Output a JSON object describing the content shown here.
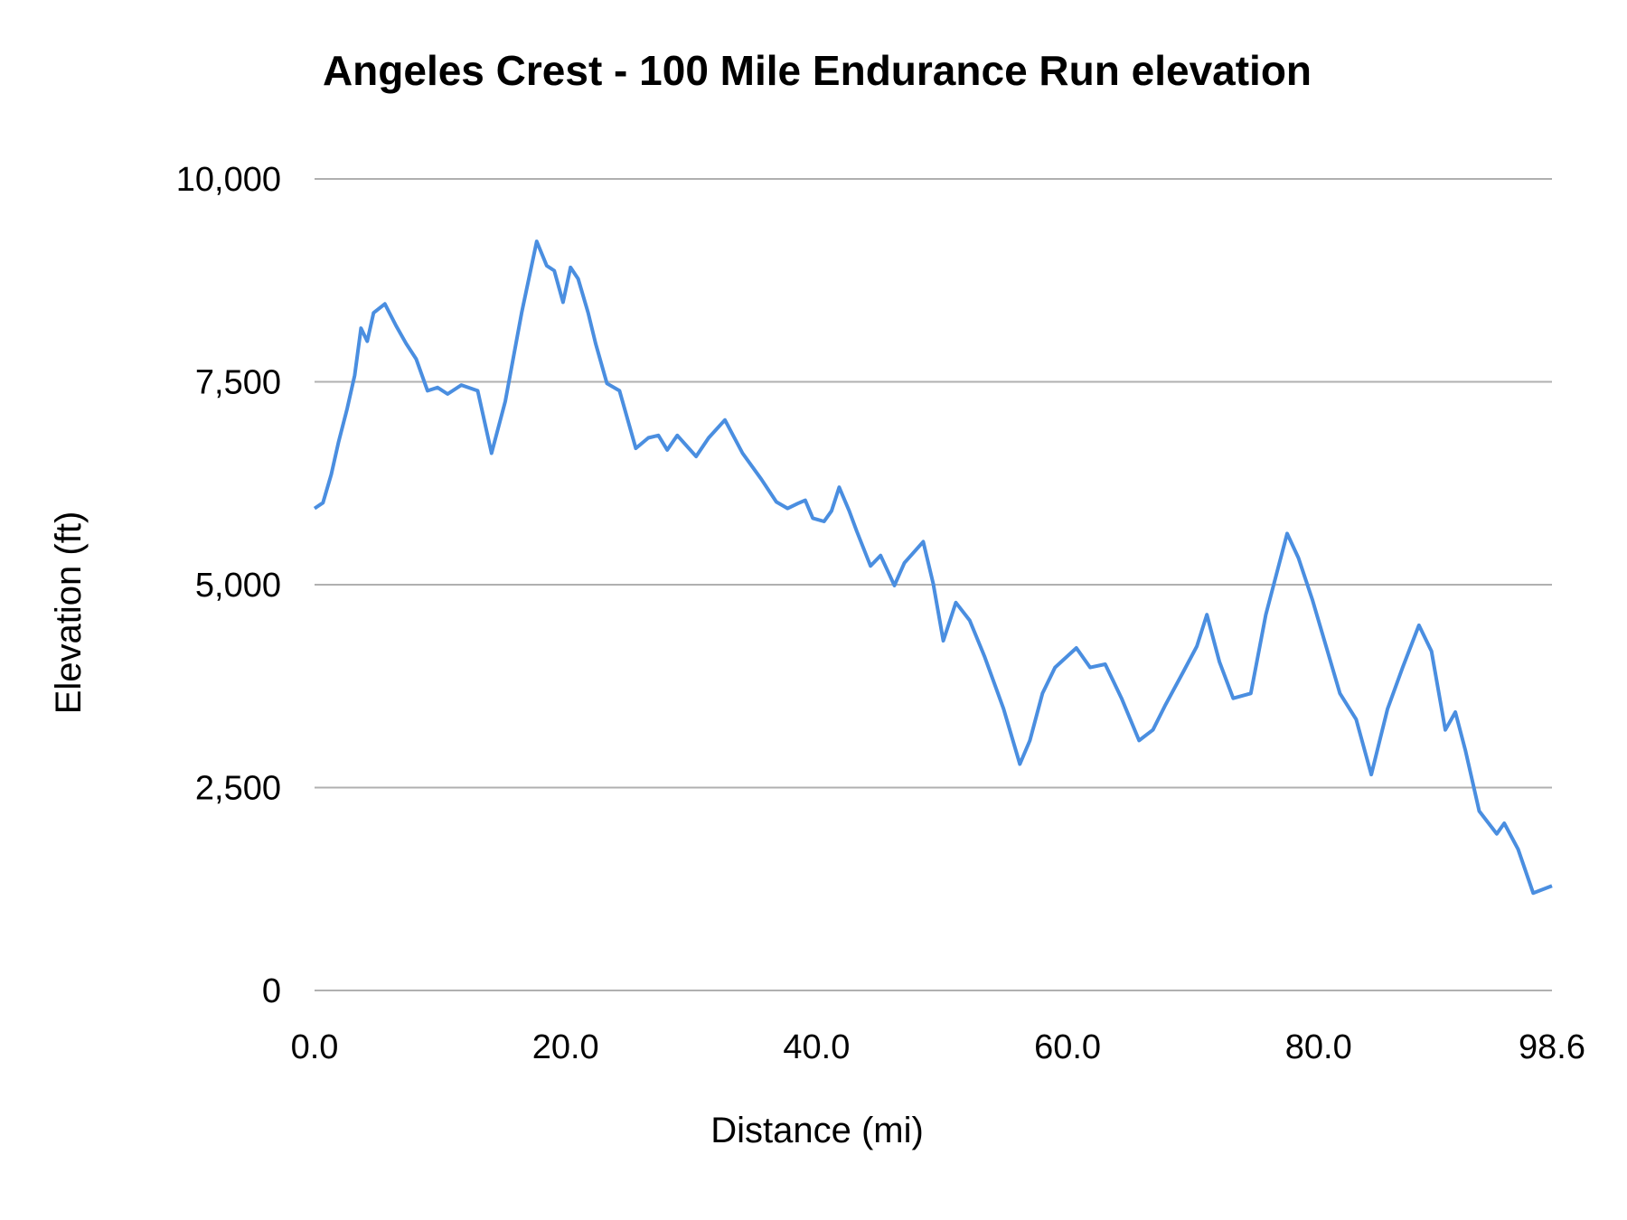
{
  "chart_data": {
    "type": "line",
    "title": "Angeles Crest - 100 Mile Endurance Run elevation",
    "xlabel": "Distance (mi)",
    "ylabel": "Elevation (ft)",
    "xlim": [
      0,
      98.6
    ],
    "ylim": [
      0,
      10000
    ],
    "x_ticks": [
      "0.0",
      "20.0",
      "40.0",
      "60.0",
      "80.0",
      "98.6"
    ],
    "x_tick_values": [
      0,
      20,
      40,
      60,
      80,
      98.6
    ],
    "y_ticks": [
      "0",
      "2,500",
      "5,000",
      "7,500",
      "10,000"
    ],
    "y_tick_values": [
      0,
      2500,
      5000,
      7500,
      10000
    ],
    "grid": "horizontal",
    "legend": "none",
    "line_color": "#4a8ee0",
    "grid_color": "#b0b0b0",
    "series": [
      {
        "x": [
          0,
          0.67,
          1.33,
          1.9,
          2.6,
          3.2,
          3.7,
          4.2,
          4.7,
          5.6,
          6.5,
          7.3,
          8.1,
          9.0,
          9.8,
          10.6,
          11.7,
          13.0,
          14.1,
          15.2,
          16.5,
          17.7,
          18.5,
          19.1,
          19.8,
          20.4,
          21.0,
          21.8,
          22.4,
          23.3,
          24.3,
          25.6,
          26.6,
          27.4,
          28.1,
          28.9,
          30.4,
          31.4,
          32.7,
          34.1,
          35.6,
          36.8,
          37.7,
          38.5,
          39.1,
          39.7,
          40.6,
          41.2,
          41.8,
          42.6,
          43.2,
          44.3,
          45.1,
          46.2,
          47.0,
          48.5,
          49.3,
          50.1,
          51.1,
          52.2,
          53.4,
          54.9,
          56.2,
          57.0,
          58.0,
          59.0,
          60.7,
          61.8,
          63.0,
          64.3,
          65.7,
          66.8,
          67.8,
          69.2,
          70.3,
          71.1,
          72.1,
          73.2,
          74.6,
          75.8,
          77.5,
          78.4,
          79.5,
          80.6,
          81.7,
          83.0,
          84.2,
          85.5,
          86.7,
          88.0,
          89.0,
          90.1,
          90.9,
          91.7,
          92.8,
          94.2,
          94.8,
          95.9,
          97.1,
          98.6
        ],
        "y": [
          5940,
          6010,
          6360,
          6750,
          7170,
          7580,
          8160,
          8000,
          8350,
          8460,
          8190,
          7970,
          7780,
          7390,
          7430,
          7350,
          7460,
          7390,
          6620,
          7260,
          8350,
          9230,
          8930,
          8870,
          8480,
          8910,
          8770,
          8350,
          7970,
          7480,
          7390,
          6680,
          6810,
          6840,
          6660,
          6840,
          6580,
          6810,
          7030,
          6620,
          6300,
          6020,
          5940,
          6000,
          6040,
          5820,
          5780,
          5910,
          6200,
          5910,
          5660,
          5230,
          5360,
          4990,
          5270,
          5530,
          5010,
          4310,
          4780,
          4560,
          4110,
          3470,
          2790,
          3080,
          3660,
          3980,
          4220,
          3980,
          4020,
          3600,
          3080,
          3210,
          3520,
          3920,
          4240,
          4630,
          4050,
          3600,
          3660,
          4630,
          5630,
          5330,
          4820,
          4240,
          3660,
          3340,
          2660,
          3470,
          3980,
          4500,
          4180,
          3210,
          3430,
          2960,
          2210,
          1930,
          2060,
          1740,
          1200,
          1290
        ]
      }
    ]
  }
}
